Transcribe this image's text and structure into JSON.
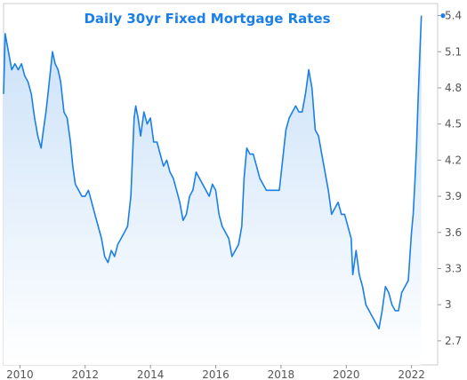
{
  "chart_data": {
    "type": "area",
    "title": "Daily 30yr Fixed Mortgage Rates",
    "xlabel": "",
    "ylabel": "",
    "x_ticks": [
      "2010",
      "2012",
      "2014",
      "2016",
      "2018",
      "2020",
      "2022"
    ],
    "y_ticks": [
      "2.7",
      "3",
      "3.3",
      "3.6",
      "3.9",
      "4.2",
      "4.5",
      "4.8",
      "5.1",
      "5.4"
    ],
    "xlim": [
      2009.5,
      2022.8
    ],
    "ylim": [
      2.5,
      5.5
    ],
    "grid": false,
    "colors": {
      "line": "#1a7fe6",
      "fill_top": "#c9e0f8",
      "fill_bottom": "#ffffff",
      "title": "#1a7fe6",
      "axis": "#999999"
    },
    "series": [
      {
        "x": [
          2009.5,
          2009.55,
          2009.65,
          2009.75,
          2009.85,
          2009.95,
          2010.05,
          2010.15,
          2010.25,
          2010.35,
          2010.45,
          2010.55,
          2010.65,
          2010.72,
          2010.8,
          2010.9,
          2011.0,
          2011.08,
          2011.17,
          2011.25,
          2011.35,
          2011.45,
          2011.55,
          2011.62,
          2011.7,
          2011.8,
          2011.9,
          2012.0,
          2012.1,
          2012.2,
          2012.3,
          2012.4,
          2012.5,
          2012.6,
          2012.7,
          2012.8,
          2012.9,
          2013.0,
          2013.1,
          2013.2,
          2013.3,
          2013.4,
          2013.5,
          2013.55,
          2013.62,
          2013.7,
          2013.8,
          2013.9,
          2014.0,
          2014.1,
          2014.2,
          2014.3,
          2014.4,
          2014.5,
          2014.6,
          2014.7,
          2014.8,
          2014.9,
          2015.0,
          2015.1,
          2015.2,
          2015.3,
          2015.4,
          2015.5,
          2015.6,
          2015.7,
          2015.8,
          2015.9,
          2016.0,
          2016.1,
          2016.2,
          2016.3,
          2016.4,
          2016.5,
          2016.6,
          2016.7,
          2016.8,
          2016.87,
          2016.95,
          2017.05,
          2017.15,
          2017.25,
          2017.35,
          2017.45,
          2017.55,
          2017.65,
          2017.75,
          2017.85,
          2017.95,
          2018.05,
          2018.15,
          2018.25,
          2018.35,
          2018.45,
          2018.55,
          2018.65,
          2018.75,
          2018.85,
          2018.95,
          2019.05,
          2019.15,
          2019.25,
          2019.35,
          2019.45,
          2019.55,
          2019.65,
          2019.75,
          2019.85,
          2019.95,
          2020.05,
          2020.15,
          2020.2,
          2020.3,
          2020.4,
          2020.5,
          2020.6,
          2020.7,
          2020.8,
          2020.9,
          2021.0,
          2021.1,
          2021.2,
          2021.3,
          2021.4,
          2021.5,
          2021.6,
          2021.7,
          2021.8,
          2021.9,
          2022.0,
          2022.05,
          2022.1,
          2022.15,
          2022.2,
          2022.25,
          2022.3
        ],
        "y": [
          4.75,
          5.25,
          5.1,
          4.95,
          5.0,
          4.95,
          5.0,
          4.9,
          4.85,
          4.75,
          4.55,
          4.4,
          4.3,
          4.45,
          4.6,
          4.85,
          5.1,
          5.0,
          4.95,
          4.85,
          4.6,
          4.55,
          4.35,
          4.15,
          4.0,
          3.95,
          3.9,
          3.9,
          3.95,
          3.85,
          3.75,
          3.65,
          3.55,
          3.4,
          3.35,
          3.45,
          3.4,
          3.5,
          3.55,
          3.6,
          3.65,
          3.9,
          4.55,
          4.65,
          4.55,
          4.4,
          4.6,
          4.5,
          4.55,
          4.35,
          4.35,
          4.25,
          4.15,
          4.2,
          4.1,
          4.05,
          3.95,
          3.85,
          3.7,
          3.75,
          3.9,
          3.95,
          4.1,
          4.05,
          4.0,
          3.95,
          3.9,
          4.0,
          3.95,
          3.75,
          3.65,
          3.6,
          3.55,
          3.4,
          3.45,
          3.5,
          3.65,
          4.05,
          4.3,
          4.25,
          4.25,
          4.15,
          4.05,
          4.0,
          3.95,
          3.95,
          3.95,
          3.95,
          3.95,
          4.2,
          4.45,
          4.55,
          4.6,
          4.65,
          4.6,
          4.6,
          4.75,
          4.95,
          4.8,
          4.45,
          4.4,
          4.25,
          4.1,
          3.95,
          3.75,
          3.8,
          3.85,
          3.75,
          3.75,
          3.65,
          3.55,
          3.25,
          3.45,
          3.25,
          3.15,
          3.0,
          2.95,
          2.9,
          2.85,
          2.8,
          2.95,
          3.15,
          3.1,
          3.0,
          2.95,
          2.95,
          3.1,
          3.15,
          3.2,
          3.6,
          3.75,
          4.0,
          4.3,
          4.7,
          5.05,
          5.4
        ]
      }
    ]
  }
}
